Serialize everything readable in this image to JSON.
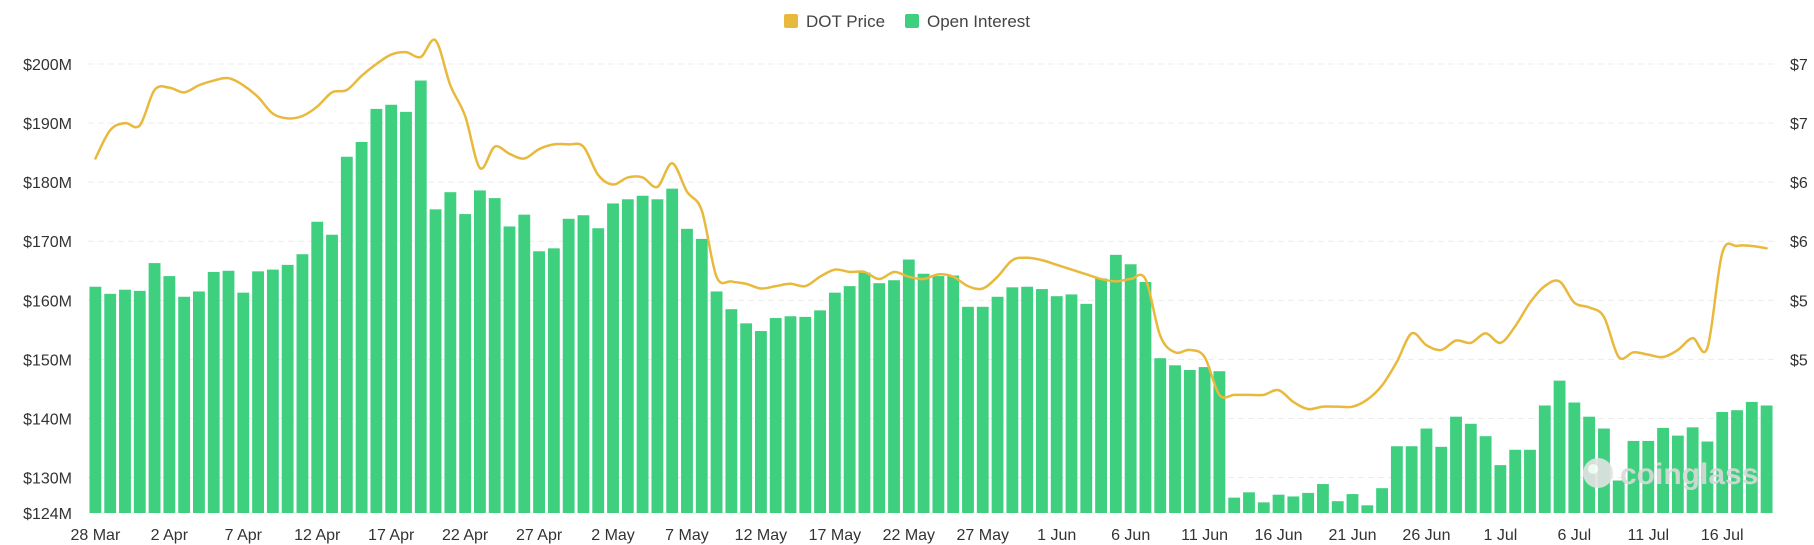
{
  "chart_data": {
    "type": "bar",
    "title": "",
    "legend_position": "top-center",
    "legend": [
      {
        "name": "DOT Price",
        "color": "#e8b93c",
        "mark": "line"
      },
      {
        "name": "Open Interest",
        "color": "#3ecf7f",
        "mark": "bar"
      }
    ],
    "grid": true,
    "y_left": {
      "ticks": [
        "$200M",
        "$190M",
        "$180M",
        "$170M",
        "$160M",
        "$150M",
        "$140M",
        "$130M",
        "$124M"
      ],
      "tick_values": [
        200,
        190,
        180,
        170,
        160,
        150,
        140,
        130,
        124
      ],
      "range": [
        124,
        200
      ],
      "unit": "M"
    },
    "y_right": {
      "ticks": [
        "$7",
        "$7",
        "$6",
        "$6",
        "$5",
        "$5"
      ],
      "tick_values": [
        7.0,
        6.75,
        6.5,
        6.25,
        6.0,
        5.75
      ],
      "range": [
        5.1,
        7.0
      ]
    },
    "x_ticks": [
      "28 Mar",
      "2 Apr",
      "7 Apr",
      "12 Apr",
      "17 Apr",
      "22 Apr",
      "27 Apr",
      "2 May",
      "7 May",
      "12 May",
      "17 May",
      "22 May",
      "27 May",
      "1 Jun",
      "6 Jun",
      "11 Jun",
      "16 Jun",
      "21 Jun",
      "26 Jun",
      "1 Jul",
      "6 Jul",
      "11 Jul",
      "16 Jul"
    ],
    "series": [
      {
        "name": "Open Interest",
        "values": [
          162.3,
          161.1,
          161.8,
          161.6,
          166.3,
          164.1,
          160.6,
          161.5,
          164.8,
          165,
          161.3,
          164.9,
          165.2,
          166,
          167.8,
          173.3,
          171.1,
          184.3,
          186.8,
          192.4,
          193.1,
          191.9,
          197.2,
          175.4,
          178.3,
          174.6,
          178.6,
          177.3,
          172.5,
          174.5,
          168.3,
          168.8,
          173.8,
          174.4,
          172.2,
          176.4,
          177.1,
          177.7,
          177.1,
          178.9,
          172.1,
          170.4,
          161.5,
          158.5,
          156.1,
          154.8,
          157,
          157.3,
          157.2,
          158.3,
          161.3,
          162.4,
          164.7,
          162.9,
          163.4,
          166.9,
          164.5,
          164.1,
          164.2,
          158.9,
          158.9,
          160.6,
          162.2,
          162.3,
          161.9,
          160.7,
          161,
          159.4,
          163.7,
          167.7,
          166.1,
          163.1,
          150.2,
          149,
          148.2,
          148.7,
          148,
          126.6,
          127.5,
          125.8,
          127.1,
          126.8,
          127.4,
          128.9,
          126,
          127.2,
          125.3,
          128.2,
          135.3,
          135.3,
          138.3,
          135.2,
          140.3,
          139.1,
          137,
          132.1,
          134.7,
          134.7,
          142.2,
          146.4,
          142.7,
          140.3,
          138.3,
          129.5,
          136.2,
          136.2,
          138.4,
          137.1,
          138.5,
          136.1,
          141.1,
          141.4,
          142.8,
          142.2
        ]
      },
      {
        "name": "DOT Price",
        "x": [
          0,
          1,
          2,
          3,
          4,
          5,
          6,
          7,
          8,
          9,
          10,
          11,
          12,
          13,
          14,
          15,
          16,
          17,
          18,
          19,
          20,
          21,
          22,
          23,
          24,
          25,
          26,
          27,
          28,
          29,
          30,
          31,
          32,
          33,
          34,
          35,
          36,
          37,
          38,
          39,
          40,
          41,
          42,
          43,
          44,
          45,
          46,
          47,
          48,
          49,
          50,
          51,
          52,
          53,
          54,
          55,
          56,
          57,
          58,
          59,
          60,
          61,
          62,
          63,
          64,
          65,
          66,
          67,
          68,
          69,
          70,
          71,
          72,
          73,
          74,
          75,
          76,
          77,
          78,
          79,
          80,
          81,
          82,
          83,
          84,
          85,
          86,
          87,
          88,
          89,
          90,
          91,
          92,
          93,
          94,
          95,
          96,
          97,
          98,
          99,
          100,
          101,
          102,
          103,
          104,
          105,
          106,
          107,
          108,
          109,
          110,
          111,
          112,
          113
        ],
        "values": [
          6.6,
          6.72,
          6.75,
          6.74,
          6.89,
          6.9,
          6.88,
          6.91,
          6.93,
          6.94,
          6.91,
          6.86,
          6.79,
          6.77,
          6.78,
          6.82,
          6.88,
          6.89,
          6.95,
          7.0,
          7.04,
          7.05,
          7.03,
          7.1,
          6.91,
          6.78,
          6.56,
          6.65,
          6.62,
          6.6,
          6.64,
          6.66,
          6.66,
          6.65,
          6.53,
          6.49,
          6.52,
          6.52,
          6.48,
          6.58,
          6.46,
          6.38,
          6.1,
          6.08,
          6.07,
          6.05,
          6.06,
          6.07,
          6.06,
          6.1,
          6.13,
          6.12,
          6.12,
          6.09,
          6.12,
          6.1,
          6.09,
          6.11,
          6.1,
          6.06,
          6.05,
          6.1,
          6.17,
          6.18,
          6.17,
          6.15,
          6.13,
          6.11,
          6.09,
          6.08,
          6.09,
          6.09,
          5.85,
          5.78,
          5.79,
          5.76,
          5.6,
          5.6,
          5.6,
          5.6,
          5.62,
          5.57,
          5.54,
          5.55,
          5.55,
          5.55,
          5.58,
          5.64,
          5.74,
          5.86,
          5.81,
          5.79,
          5.83,
          5.82,
          5.86,
          5.82,
          5.89,
          5.99,
          6.06,
          6.08,
          5.99,
          5.97,
          5.93,
          5.76,
          5.78,
          5.77,
          5.76,
          5.79,
          5.84,
          5.8,
          6.2,
          6.23,
          6.23,
          6.22
        ]
      }
    ]
  },
  "watermark": {
    "text": "coinglass",
    "icon": "coinglass-logo-icon"
  }
}
